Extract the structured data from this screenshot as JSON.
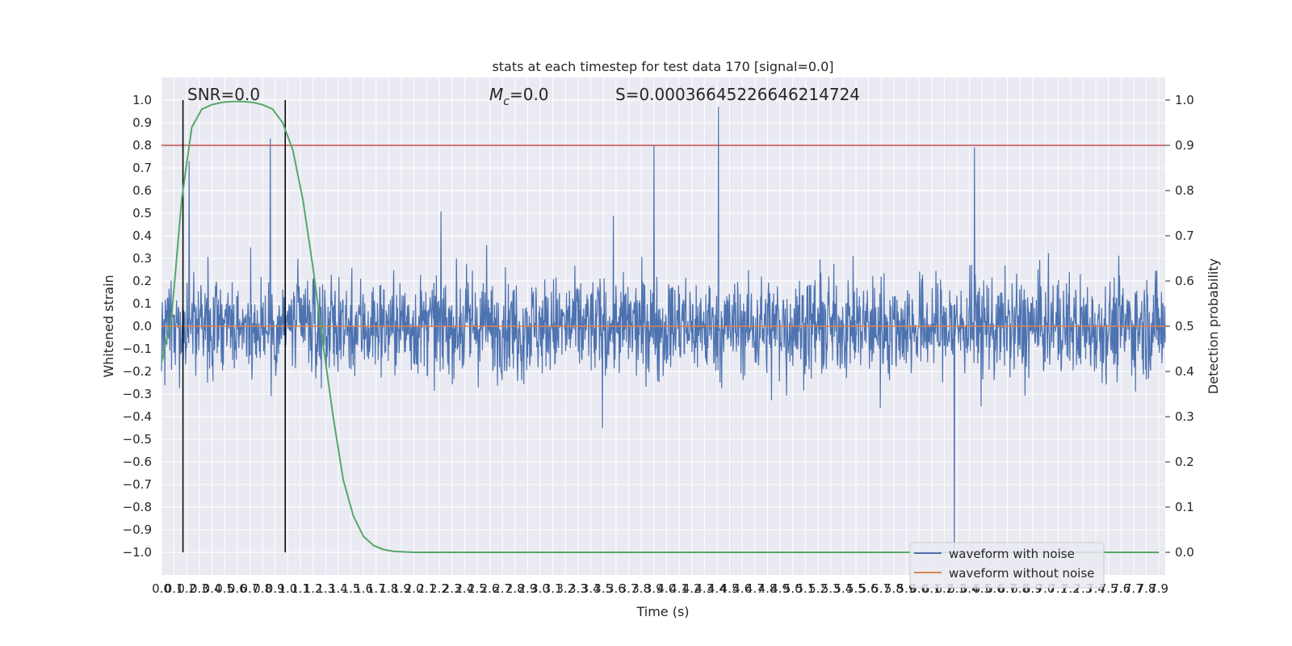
{
  "chart_data": {
    "type": "line",
    "title": "stats at each timestep for test data 170 [signal=0.0]",
    "xlabel": "Time (s)",
    "ylabel": "Whitened strain",
    "y2label": "Detection probability",
    "xlim": [
      0.0,
      7.95
    ],
    "ylim": [
      -1.1,
      1.1
    ],
    "y2lim": [
      -0.05,
      1.05
    ],
    "x_ticks": [
      "0.0",
      "0.1",
      "0.2",
      "0.3",
      "0.4",
      "0.5",
      "0.6",
      "0.7",
      "0.8",
      "0.9",
      "1.0",
      "1.1",
      "1.2",
      "1.3",
      "1.4",
      "1.5",
      "1.6",
      "1.7",
      "1.8",
      "1.9",
      "2.0",
      "2.1",
      "2.2",
      "2.3",
      "2.4",
      "2.5",
      "2.6",
      "2.7",
      "2.8",
      "2.9",
      "3.0",
      "3.1",
      "3.2",
      "3.3",
      "3.4",
      "3.5",
      "3.6",
      "3.7",
      "3.8",
      "3.9",
      "4.0",
      "4.1",
      "4.2",
      "4.3",
      "4.4",
      "4.5",
      "4.6",
      "4.7",
      "4.8",
      "4.9",
      "5.0",
      "5.1",
      "5.2",
      "5.3",
      "5.4",
      "5.5",
      "5.6",
      "5.7",
      "5.8",
      "5.9",
      "6.0",
      "6.1",
      "6.2",
      "6.3",
      "6.4",
      "6.5",
      "6.6",
      "6.7",
      "6.8",
      "6.9",
      "7.0",
      "7.1",
      "7.2",
      "7.3",
      "7.4",
      "7.5",
      "7.6",
      "7.7",
      "7.8",
      "7.9"
    ],
    "y_ticks": [
      "1.0",
      "0.9",
      "0.8",
      "0.7",
      "0.6",
      "0.5",
      "0.4",
      "0.3",
      "0.2",
      "0.1",
      "0.0",
      "−0.1",
      "−0.2",
      "−0.3",
      "−0.4",
      "−0.5",
      "−0.6",
      "−0.7",
      "−0.8",
      "−0.9",
      "−1.0"
    ],
    "y2_ticks": [
      "1.0",
      "0.9",
      "0.8",
      "0.7",
      "0.6",
      "0.5",
      "0.4",
      "0.3",
      "0.2",
      "0.1",
      "0.0"
    ],
    "series": [
      {
        "name": "waveform with noise",
        "color": "#4c72b0",
        "axis": "left",
        "note": "dense whitened noise, envelope mostly within ±0.5",
        "peaks_x": [
          0.22,
          0.86,
          3.9,
          4.41,
          6.28,
          6.44
        ],
        "peaks_y": [
          0.73,
          0.83,
          0.8,
          0.97,
          -1.0,
          0.79
        ]
      },
      {
        "name": "waveform without noise",
        "color": "#dd8452",
        "axis": "left",
        "x": [
          0.0,
          7.95
        ],
        "y": [
          0.0,
          0.0
        ]
      },
      {
        "name": "",
        "color": "#55a868",
        "axis": "right",
        "x": [
          0.0,
          0.08,
          0.16,
          0.24,
          0.32,
          0.4,
          0.48,
          0.56,
          0.64,
          0.72,
          0.8,
          0.88,
          0.96,
          1.04,
          1.12,
          1.2,
          1.28,
          1.36,
          1.44,
          1.52,
          1.6,
          1.68,
          1.76,
          1.84,
          1.92,
          2.0,
          2.5,
          3.0,
          4.0,
          5.0,
          6.0,
          7.0,
          7.9
        ],
        "y": [
          0.42,
          0.52,
          0.78,
          0.94,
          0.98,
          0.99,
          0.995,
          0.997,
          0.997,
          0.995,
          0.99,
          0.98,
          0.95,
          0.89,
          0.78,
          0.63,
          0.46,
          0.3,
          0.16,
          0.08,
          0.035,
          0.015,
          0.006,
          0.002,
          0.001,
          0.0,
          0.0,
          0.0,
          0.0,
          0.0,
          0.0,
          0.0,
          0.0
        ]
      }
    ],
    "threshold_line": {
      "axis": "right",
      "value": 0.9,
      "color": "#c44e52"
    },
    "vertical_markers_x": [
      0.17,
      0.98
    ],
    "annotations": [
      "SNR=0.0",
      "=0.0",
      "S=0.00036645226646214724"
    ],
    "annotation_mc_symbol": "M",
    "annotation_mc_subscript": "c",
    "legend": {
      "placement": "lower right",
      "entries": [
        "waveform with noise",
        "waveform without noise"
      ]
    },
    "grid": true,
    "style": {
      "background": "#eaeaf2",
      "grid_color": "#ffffff"
    }
  }
}
